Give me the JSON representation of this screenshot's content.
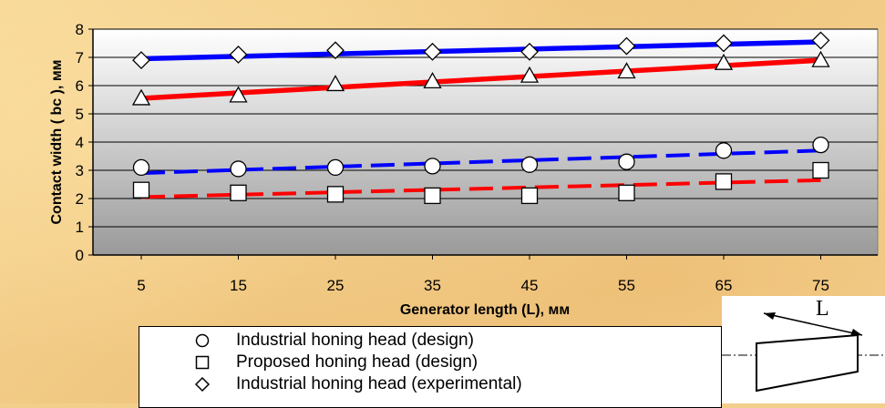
{
  "chart_data": {
    "type": "line",
    "title": "",
    "xlabel": "Generator length (L), мм",
    "ylabel": "Contact width ( bc ), мм",
    "x": [
      5,
      15,
      25,
      35,
      45,
      55,
      65,
      75
    ],
    "ylim": [
      0,
      8
    ],
    "yticks": [
      0,
      1,
      2,
      3,
      4,
      5,
      6,
      7,
      8
    ],
    "grid": true,
    "legend_position": "bottom",
    "series": [
      {
        "name": "Industrial honing head (design)",
        "marker": "circle",
        "values": [
          3.1,
          3.05,
          3.1,
          3.15,
          3.2,
          3.3,
          3.7,
          3.9
        ]
      },
      {
        "name": "Proposed honing head (design)",
        "marker": "square",
        "values": [
          2.3,
          2.2,
          2.15,
          2.1,
          2.1,
          2.2,
          2.6,
          3.0
        ]
      },
      {
        "name": "Industrial honing head (experimental)",
        "marker": "diamond",
        "values": [
          6.9,
          7.1,
          7.25,
          7.2,
          7.2,
          7.4,
          7.5,
          7.6
        ]
      },
      {
        "name": "",
        "marker": "triangle",
        "values": [
          5.55,
          5.65,
          6.05,
          6.15,
          6.35,
          6.5,
          6.8,
          6.9
        ]
      }
    ],
    "trendlines": [
      {
        "series": 2,
        "color": "#0000ff",
        "style": "solid",
        "start": 6.95,
        "end": 7.55
      },
      {
        "series": 3,
        "color": "#ff0000",
        "style": "solid",
        "start": 5.55,
        "end": 6.9
      },
      {
        "series": 0,
        "color": "#0000ff",
        "style": "dashed",
        "start": 2.9,
        "end": 3.7
      },
      {
        "series": 1,
        "color": "#ff0000",
        "style": "dashed",
        "start": 2.05,
        "end": 2.65
      }
    ]
  },
  "inset": {
    "label": "L",
    "icon": "tapered-cylinder-diagram"
  }
}
